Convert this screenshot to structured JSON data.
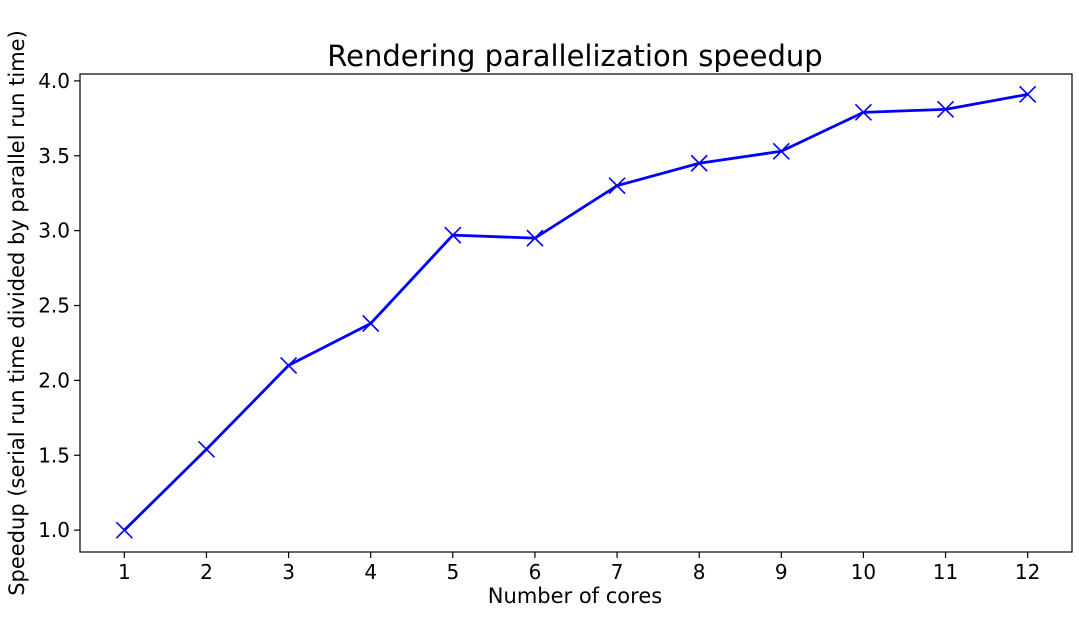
{
  "chart_data": {
    "type": "line",
    "title": "Rendering parallelization speedup",
    "xlabel": "Number of cores",
    "ylabel": "Speedup (serial run time divided by parallel run time)",
    "x": [
      1,
      2,
      3,
      4,
      5,
      6,
      7,
      8,
      9,
      10,
      11,
      12
    ],
    "xticks": [
      "1",
      "2",
      "3",
      "4",
      "5",
      "6",
      "7",
      "8",
      "9",
      "10",
      "11",
      "12"
    ],
    "yticks": [
      "1.0",
      "1.5",
      "2.0",
      "2.5",
      "3.0",
      "3.5",
      "4.0"
    ],
    "xlim": [
      0.46,
      12.54
    ],
    "ylim": [
      0.854,
      4.046
    ],
    "grid": false,
    "series": [
      {
        "values": [
          1.0,
          1.54,
          2.1,
          2.38,
          2.97,
          2.95,
          3.3,
          3.45,
          3.53,
          3.79,
          3.81,
          3.91
        ],
        "color": "#0000ff",
        "marker": "x"
      }
    ]
  }
}
